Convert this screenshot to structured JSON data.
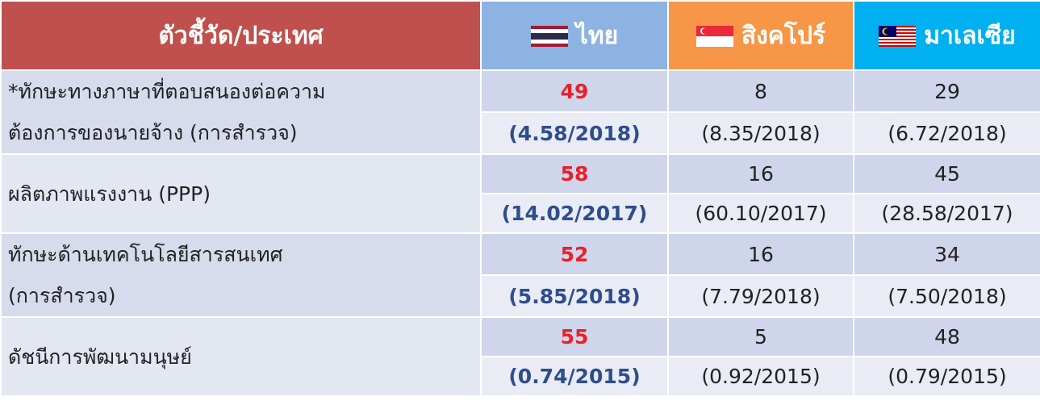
{
  "header": {
    "indicator": "ตัวชี้วัด/ประเทศ",
    "countries": [
      "ไทย",
      "สิงคโปร์",
      "มาเลเซีย"
    ]
  },
  "rows": [
    {
      "label": [
        "*ทักษะทางภาษาที่ตอบสนองต่อความ",
        "ต้องการของนายจ้าง (การสำรวจ)"
      ],
      "ranks": [
        49,
        8,
        29
      ],
      "scores": [
        "(4.58/2018)",
        "(8.35/2018)",
        "(6.72/2018)"
      ]
    },
    {
      "label": [
        "ผลิตภาพแรงงาน (PPP)"
      ],
      "ranks": [
        58,
        16,
        45
      ],
      "scores": [
        "(14.02/2017)",
        "(60.10/2017)",
        "(28.58/2017)"
      ]
    },
    {
      "label": [
        "ทักษะด้านเทคโนโลยีสารสนเทศ",
        "(การสำรวจ)"
      ],
      "ranks": [
        52,
        16,
        34
      ],
      "scores": [
        "(5.85/2018)",
        "(7.79/2018)",
        "(7.50/2018)"
      ]
    },
    {
      "label": [
        "ดัชนีการพัฒนามนุษย์"
      ],
      "ranks": [
        55,
        5,
        48
      ],
      "scores": [
        "(0.74/2015)",
        "(0.92/2015)",
        "(0.79/2015)"
      ]
    }
  ]
}
